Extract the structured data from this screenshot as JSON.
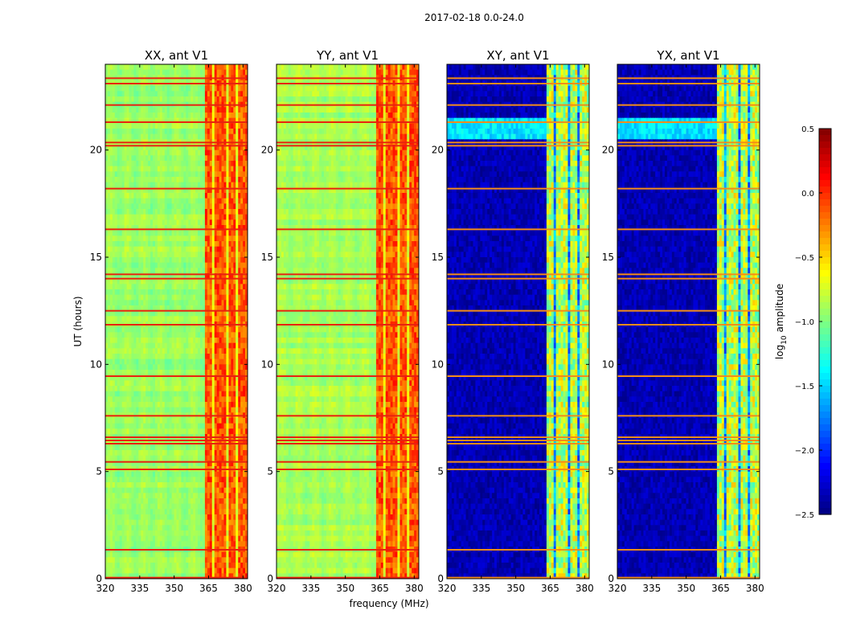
{
  "chart_data": {
    "type": "heatmap",
    "title": "2017-02-18 0.0-24.0",
    "xlabel": "frequency (MHz)",
    "ylabel": "UT (hours)",
    "xlim": [
      320,
      382
    ],
    "ylim": [
      0,
      24
    ],
    "xticks": [
      320,
      335,
      350,
      365,
      380
    ],
    "yticks": [
      0,
      5,
      10,
      15,
      20
    ],
    "colorbar": {
      "label": "log10 amplitude",
      "label_base": "log",
      "label_sub": "10",
      "label_rest": " amplitude",
      "range": [
        -2.5,
        0.5
      ],
      "ticks": [
        {
          "value": 0.5,
          "label": "0.5"
        },
        {
          "value": 0.0,
          "label": "0.0"
        },
        {
          "value": -0.5,
          "label": "−0.5"
        },
        {
          "value": -1.0,
          "label": "−1.0"
        },
        {
          "value": -1.5,
          "label": "−1.5"
        },
        {
          "value": -2.0,
          "label": "−2.0"
        },
        {
          "value": -2.5,
          "label": "−2.5"
        }
      ],
      "colormap": "jet"
    },
    "panels": [
      {
        "title": "XX, ant V1",
        "type": "auto",
        "base_level": -0.92
      },
      {
        "title": "YY, ant V1",
        "type": "auto",
        "base_level": -0.88
      },
      {
        "title": "XY, ant V1",
        "type": "cross",
        "base_level": -2.35
      },
      {
        "title": "YX, ant V1",
        "type": "cross",
        "base_level": -2.35
      }
    ],
    "rfi_band_mhz": [
      363.5,
      381.5
    ],
    "rfi_band_gaps_mhz": [
      [
        366.5,
        367.5
      ],
      [
        372.3,
        373.3
      ],
      [
        377.3,
        378.2
      ]
    ],
    "flagged_rows_ut": [
      0.05,
      1.35,
      5.1,
      5.45,
      6.3,
      6.45,
      6.6,
      7.6,
      9.45,
      11.85,
      12.5,
      14.0,
      14.2,
      16.3,
      18.2,
      20.2,
      20.35,
      21.3,
      22.1,
      23.1,
      23.35
    ],
    "cross_bright_band_ut": [
      20.4,
      21.4
    ]
  }
}
